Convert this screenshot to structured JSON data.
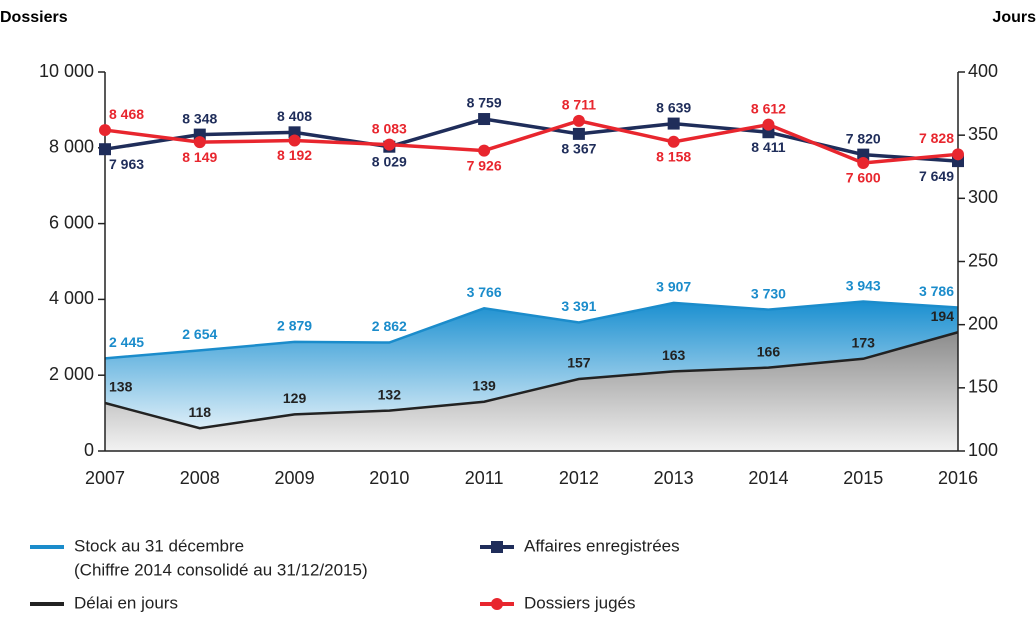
{
  "chart_data": {
    "type": "line",
    "y_label": "Dossiers",
    "y2_label": "Jours",
    "categories": [
      "2007",
      "2008",
      "2009",
      "2010",
      "2011",
      "2012",
      "2013",
      "2014",
      "2015",
      "2016"
    ],
    "ylim": [
      0,
      10000
    ],
    "yticks": [
      0,
      {
        "value": 2000,
        "label": "2 000"
      },
      {
        "value": 4000,
        "label": "4 000"
      },
      {
        "value": 6000,
        "label": "6 000"
      },
      {
        "value": 8000,
        "label": "8 000"
      },
      {
        "value": 10000,
        "label": "10 000"
      }
    ],
    "y2lim": [
      100,
      400
    ],
    "y2ticks": [
      100,
      150,
      200,
      250,
      300,
      350,
      400
    ],
    "grid": true,
    "series": [
      {
        "name": "Stock au 31 décembre",
        "legend_note": "(Chiffre 2014 consolidé au 31/12/2015)",
        "kind": "area",
        "color": "#1b8ccb",
        "values": [
          2445,
          2654,
          2879,
          2862,
          3766,
          3391,
          3907,
          3730,
          3943,
          3786
        ],
        "value_labels": [
          "2 445",
          "2 654",
          "2 879",
          "2 862",
          "3 766",
          "3 391",
          "3 907",
          "3 730",
          "3 943",
          "3 786"
        ]
      },
      {
        "name": "Délai en jours",
        "kind": "area",
        "axis": "y2",
        "color": "#222222",
        "values": [
          138,
          118,
          129,
          132,
          139,
          157,
          163,
          166,
          173,
          194
        ]
      },
      {
        "name": "Affaires enregistrées",
        "kind": "line",
        "marker": "square",
        "color": "#1f2d5a",
        "values": [
          7963,
          8348,
          8408,
          8029,
          8759,
          8367,
          8639,
          8411,
          7820,
          7649
        ],
        "value_labels": [
          "7 963",
          "8 348",
          "8 408",
          "8 029",
          "8 759",
          "8 367",
          "8 639",
          "8 411",
          "7 820",
          "7 649"
        ]
      },
      {
        "name": "Dossiers jugés",
        "kind": "line",
        "marker": "circle",
        "color": "#e8262e",
        "values": [
          8468,
          8149,
          8192,
          8083,
          7926,
          8711,
          8158,
          8612,
          7600,
          7828
        ],
        "value_labels": [
          "8 468",
          "8 149",
          "8 192",
          "8 083",
          "7 926",
          "8 711",
          "8 158",
          "8 612",
          "7 600",
          "7 828"
        ]
      }
    ]
  }
}
